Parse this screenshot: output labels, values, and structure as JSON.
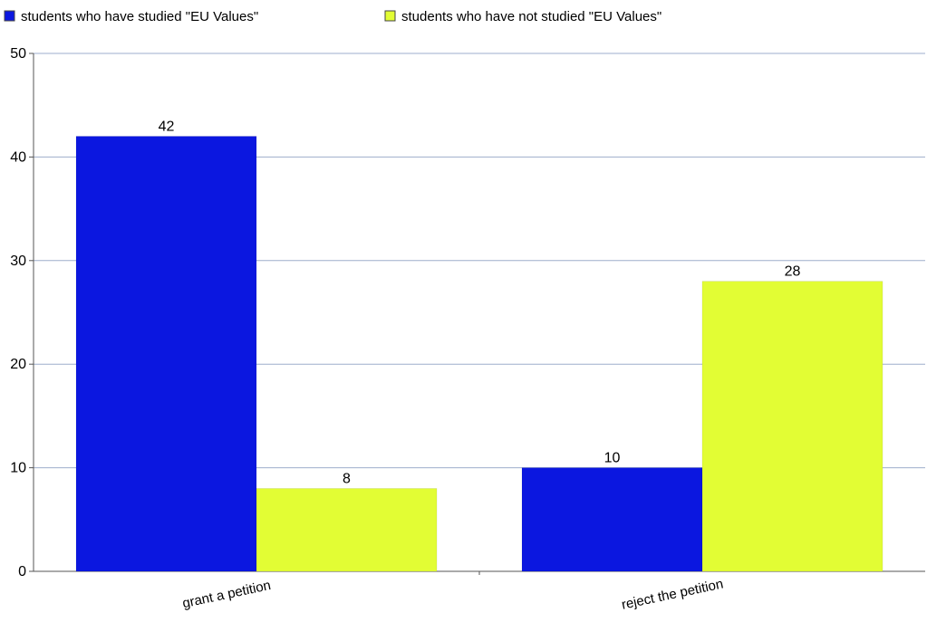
{
  "chart_data": {
    "type": "bar",
    "title": "",
    "xlabel": "",
    "ylabel": "",
    "categories": [
      "grant a petition",
      "reject the petition"
    ],
    "series": [
      {
        "name": "students who have studied \"EU Values\"",
        "values": [
          42,
          10
        ],
        "color": "#0b17e0"
      },
      {
        "name": "students who have not studied \"EU Values\"",
        "values": [
          8,
          28
        ],
        "color": "#e2fd34"
      }
    ],
    "ylim": [
      0,
      50
    ],
    "yticks": [
      0,
      10,
      20,
      30,
      40,
      50
    ],
    "grid": true,
    "gridline_color": "#9eaecc",
    "legend_position": "top-left",
    "data_labels": true,
    "x_tick_label_rotation": -12
  }
}
